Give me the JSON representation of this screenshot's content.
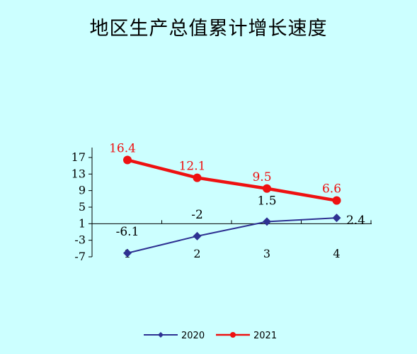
{
  "chart_data": {
    "type": "line",
    "title": "地区生产总值累计增长速度",
    "xlabel": "",
    "ylabel": "",
    "categories": [
      "1",
      "2",
      "3",
      "4"
    ],
    "yticks": [
      "17",
      "13",
      "9",
      "5",
      "1",
      "-3",
      "-7"
    ],
    "ylim": [
      -7,
      17
    ],
    "x_axis_crosses_at": 1,
    "legend_position": "bottom",
    "grid": false,
    "series": [
      {
        "name": "2020",
        "values": [
          -6.1,
          -2,
          1.5,
          2.4
        ],
        "labels": [
          "-6.1",
          "-2",
          "1.5",
          "2.4"
        ],
        "color": "#2e3192",
        "marker": "diamond"
      },
      {
        "name": "2021",
        "values": [
          16.4,
          12.1,
          9.5,
          6.6
        ],
        "labels": [
          "16.4",
          "12.1",
          "9.5",
          "6.6"
        ],
        "color": "#ee1111",
        "marker": "circle"
      }
    ]
  }
}
